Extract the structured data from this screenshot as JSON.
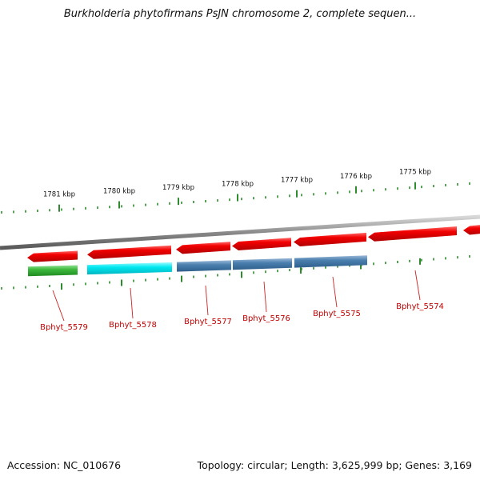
{
  "title": "Burkholderia phytofirmans PsJN chromosome 2, complete sequen...",
  "footer": {
    "accession": "Accession: NC_010676",
    "stats": "Topology: circular; Length: 3,625,999 bp; Genes: 3,169"
  },
  "ruler": {
    "unit": "kbp",
    "labels": [
      "1781 kbp",
      "1780 kbp",
      "1779 kbp",
      "1778 kbp",
      "1777 kbp",
      "1776 kbp",
      "1775 kbp"
    ]
  },
  "genes": [
    {
      "name": "Bphyt_5579"
    },
    {
      "name": "Bphyt_5578"
    },
    {
      "name": "Bphyt_5577"
    },
    {
      "name": "Bphyt_5576"
    },
    {
      "name": "Bphyt_5575"
    },
    {
      "name": "Bphyt_5574"
    }
  ],
  "colors": {
    "cds": "#e00000",
    "gene_green": "#3cb83c",
    "gene_cyan": "#00e8f0",
    "gene_steelblue": "#4a7fae",
    "backbone": "#8a8a8a",
    "tick": "#2e8b2e",
    "label": "#c00000",
    "leader": "#d02020"
  }
}
